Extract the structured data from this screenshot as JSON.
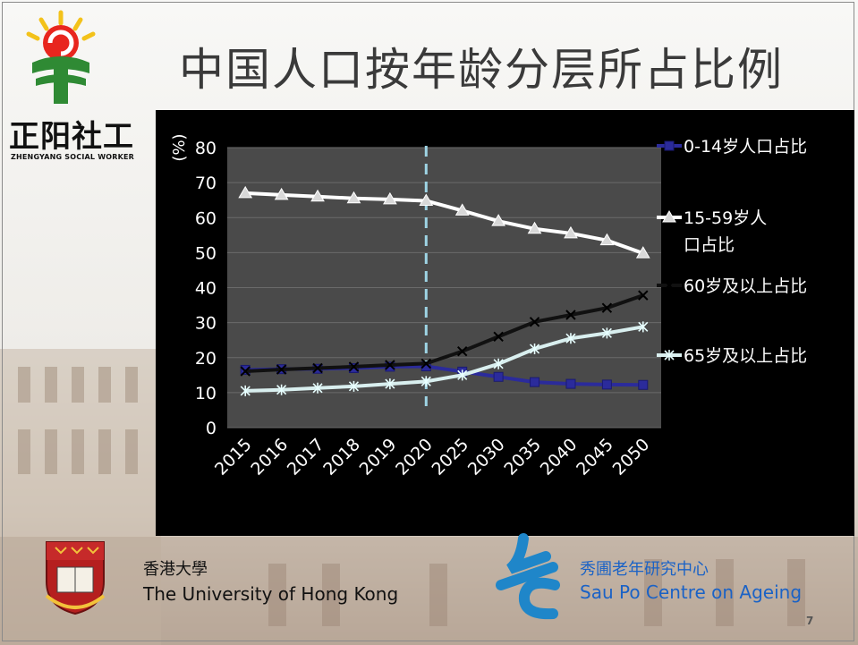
{
  "slide": {
    "title": "中国人口按年龄分层所占比例",
    "page_number": "7"
  },
  "logo": {
    "name": "正阳社工",
    "sub": "ZHENGYANG SOCIAL WORKER"
  },
  "footer": {
    "hku_cn": "香港大學",
    "hku_en": "The University of Hong Kong",
    "centre_cn": "秀圃老年研究中心",
    "centre_en": "Sau Po Centre on Ageing"
  },
  "colors": {
    "panel_bg": "#000000",
    "plot_bg": "#4a4a4a",
    "series_0_14": "#2b2b9b",
    "series_15_59": "#ffffff",
    "series_60plus": "#111111",
    "series_65plus": "#d9efef",
    "divider": "#9ed4e4"
  },
  "chart_data": {
    "type": "line",
    "ylabel": "(%)",
    "ylim": [
      0,
      80
    ],
    "yticks": [
      "0",
      "10",
      "20",
      "30",
      "40",
      "50",
      "60",
      "70",
      "80"
    ],
    "categories": [
      "2015",
      "2016",
      "2017",
      "2018",
      "2019",
      "2020",
      "2025",
      "2030",
      "2035",
      "2040",
      "2045",
      "2050"
    ],
    "divider_after": "2020",
    "legend_position": "right",
    "series": [
      {
        "name": "0-14岁人口占比",
        "marker": "square",
        "values": [
          16.5,
          16.7,
          16.8,
          17.0,
          17.4,
          17.5,
          16.0,
          14.5,
          13.0,
          12.5,
          12.3,
          12.2
        ]
      },
      {
        "name": "15-59岁人口占比",
        "marker": "triangle",
        "values": [
          67.0,
          66.5,
          66.0,
          65.5,
          65.2,
          64.8,
          62.0,
          59.0,
          56.8,
          55.5,
          53.5,
          49.8
        ]
      },
      {
        "name": "60岁及以上占比",
        "marker": "x",
        "values": [
          16.1,
          16.6,
          17.0,
          17.4,
          17.9,
          18.3,
          21.8,
          26.0,
          30.2,
          32.2,
          34.2,
          37.8
        ]
      },
      {
        "name": "65岁及以上占比",
        "marker": "star",
        "values": [
          10.5,
          10.8,
          11.3,
          11.8,
          12.5,
          13.2,
          15.0,
          18.2,
          22.5,
          25.5,
          27.0,
          28.8
        ]
      }
    ]
  }
}
